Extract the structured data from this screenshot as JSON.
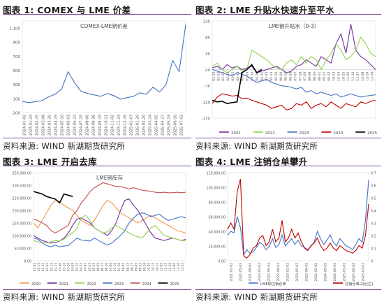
{
  "panels": [
    {
      "title": "图表 1: COMEX 与 LME 价差",
      "source": "资料来源: WIND 新湖期货研究所"
    },
    {
      "title": "图表 2: LME 升贴水快速升至平水",
      "source": "资料来源: WIND 新湖期货研究所"
    },
    {
      "title": "图表 3: LME 开启去库",
      "source": "资料来源: WIND 新湖期货研究所"
    },
    {
      "title": "图表 4: LME 注销仓单攀升",
      "source": "资料来源: WIND 新湖期货研究所"
    }
  ],
  "chart_data": [
    {
      "type": "line",
      "title": "COMEX-LME铜价差",
      "ylim": [
        -100,
        1200
      ],
      "yticks": [
        "1,100",
        "900",
        "700",
        "500",
        "300",
        "100",
        "-100"
      ],
      "x": [
        "2024-01-02",
        "2024-01-24",
        "2024-02-15",
        "2024-03-08",
        "2024-03-29",
        "2024-04-19",
        "2024-05-10",
        "2024-06-01",
        "2024-06-23",
        "2024-07-15",
        "2024-08-06",
        "2024-08-28",
        "2024-09-19",
        "2024-10-11",
        "2024-11-02",
        "2024-11-24",
        "2024-12-16",
        "2025-01-07",
        "2025-01-29",
        "2025-02-20",
        "2025-03-14",
        "2025-04-05",
        "2025-04-27",
        "2025-05-19",
        "2025-06-10",
        "2025-07-02"
      ],
      "xticks": [
        "2024-01-02",
        "2024-01-24",
        "2024-02-15",
        "2024-03-08",
        "2024-03-29",
        "2024-04-19",
        "2024-05-10",
        "2024-06-01",
        "2024-06-23",
        "2024-07-15",
        "2024-08-06",
        "2024-08-28",
        "2024-09-19",
        "2024-10-11",
        "2024-11-02",
        "2024-11-24",
        "2024-12-16",
        "2025-01-07",
        "2025-01-29",
        "2025-02-20",
        "2025-03-14",
        "2025-04-05",
        "2025-04-27",
        "2025-05-19",
        "2025-06-10",
        "2025-07-02"
      ],
      "series": [
        {
          "color": "#4472c4",
          "values": [
            60,
            40,
            55,
            70,
            120,
            160,
            230,
            480,
            320,
            200,
            170,
            150,
            130,
            170,
            140,
            90,
            110,
            130,
            180,
            160,
            260,
            190,
            300,
            640,
            480,
            1150
          ]
        }
      ]
    },
    {
      "type": "line",
      "title": "LME铜升贴水（0-3）",
      "ylim": [
        -170,
        130
      ],
      "yticks": [
        "130",
        "80",
        "30",
        "-20",
        "-70",
        "-120",
        "-170"
      ],
      "xticks": [
        "01-02",
        "01-13",
        "01-24",
        "02-04",
        "02-15",
        "02-26",
        "03-08",
        "03-19",
        "03-30",
        "04-10",
        "04-21",
        "05-02",
        "05-13",
        "05-24",
        "06-04",
        "06-15",
        "06-26",
        "07-07",
        "07-18",
        "07-29",
        "08-09",
        "08-20",
        "08-31",
        "09-11",
        "09-22",
        "10-03",
        "10-14",
        "10-25",
        "11-05",
        "11-16",
        "11-27",
        "12-08",
        "12-19",
        "12-30"
      ],
      "series": [
        {
          "name": "2021",
          "color": "#7030a0",
          "values": [
            -15,
            -10,
            -20,
            -5,
            -15,
            -10,
            -20,
            -15,
            -10,
            -30,
            -25,
            -20,
            -15,
            -10,
            -20,
            -30,
            -25,
            -10,
            -5,
            10,
            0,
            -10,
            20,
            10,
            0,
            60,
            90,
            30,
            120,
            40,
            20,
            10,
            -5,
            -20
          ]
        },
        {
          "name": "2022",
          "color": "#92d050",
          "values": [
            -10,
            0,
            -20,
            -30,
            -20,
            -10,
            -25,
            -20,
            40,
            30,
            20,
            10,
            -5,
            -15,
            -20,
            0,
            10,
            -5,
            20,
            0,
            20,
            10,
            -20,
            10,
            30,
            60,
            40,
            10,
            20,
            40,
            80,
            60,
            30,
            20
          ]
        },
        {
          "name": "2023",
          "color": "#4472c4",
          "values": [
            -20,
            -25,
            -30,
            -35,
            -40,
            -30,
            -35,
            -40,
            -50,
            -60,
            -55,
            -50,
            -60,
            -65,
            -70,
            -72,
            -75,
            -80,
            -75,
            -90,
            -85,
            -95,
            -90,
            -95,
            -100,
            -95,
            -105,
            -100,
            -95,
            -100,
            -105,
            -102,
            -100,
            -98
          ]
        },
        {
          "name": "2024",
          "color": "#c00000",
          "values": [
            -125,
            -105,
            -95,
            -98,
            -102,
            -100,
            -110,
            -108,
            -115,
            -120,
            -125,
            -130,
            -140,
            -135,
            -130,
            -145,
            -140,
            -125,
            -130,
            -120,
            -140,
            -130,
            -125,
            -135,
            -120,
            -130,
            -140,
            -125,
            -130,
            -135,
            -120,
            -125,
            -118,
            -115
          ]
        },
        {
          "name": "2025",
          "color": "#000000",
          "values": [
            -115,
            -120,
            -118,
            -125,
            -122,
            -120,
            -30,
            -20,
            -5,
            -30,
            -20
          ]
        }
      ]
    },
    {
      "type": "line",
      "title": "LME铜库存",
      "ylim": [
        0,
        350000
      ],
      "yticks": [
        "350,000.00",
        "300,000.00",
        "250,000.00",
        "200,000.00",
        "150,000.00",
        "100,000.00",
        "50,000.00",
        "0.00"
      ],
      "xticks": [
        "01-02",
        "01-13",
        "01-23",
        "02-02",
        "02-13",
        "02-23",
        "03-06",
        "03-16",
        "03-26",
        "04-05",
        "04-15",
        "04-25",
        "05-05",
        "05-15",
        "05-25",
        "06-05",
        "06-15",
        "06-26",
        "07-06",
        "07-16",
        "07-26",
        "08-05",
        "08-15",
        "08-25",
        "09-05",
        "09-15",
        "09-26",
        "10-05",
        "10-15",
        "10-25",
        "11-05",
        "11-15",
        "11-26",
        "12-06",
        "12-16",
        "12-25"
      ],
      "series": [
        {
          "name": "2020",
          "color": "#f79646",
          "values": [
            150000,
            130000,
            160000,
            190000,
            220000,
            240000,
            235000,
            220000,
            210000,
            200000,
            180000,
            160000,
            150000,
            140000,
            160000,
            190000,
            220000,
            240000,
            230000,
            210000,
            190000,
            180000,
            170000,
            160000,
            150000,
            160000,
            170000,
            180000,
            170000,
            160000,
            150000,
            140000,
            130000,
            120000,
            115000,
            110000
          ]
        },
        {
          "name": "2021",
          "color": "#7030a0",
          "values": [
            100000,
            90000,
            80000,
            75000,
            70000,
            72000,
            78000,
            90000,
            110000,
            140000,
            165000,
            170000,
            160000,
            150000,
            130000,
            120000,
            110000,
            100000,
            120000,
            150000,
            200000,
            240000,
            245000,
            220000,
            200000,
            170000,
            140000,
            110000,
            90000,
            85000,
            80000,
            85000,
            90000,
            85000,
            80000,
            85000
          ]
        },
        {
          "name": "2022",
          "color": "#92d050",
          "values": [
            80000,
            75000,
            72000,
            70000,
            75000,
            80000,
            78000,
            85000,
            100000,
            110000,
            130000,
            170000,
            180000,
            160000,
            130000,
            120000,
            110000,
            115000,
            130000,
            140000,
            130000,
            120000,
            110000,
            100000,
            95000,
            90000,
            110000,
            130000,
            140000,
            120000,
            100000,
            95000,
            90000,
            85000,
            80000,
            80000
          ]
        },
        {
          "name": "2023",
          "color": "#4472c4",
          "values": [
            90000,
            85000,
            70000,
            60000,
            55000,
            62000,
            55000,
            58000,
            60000,
            75000,
            90000,
            82000,
            80000,
            78000,
            90000,
            80000,
            70000,
            62000,
            70000,
            85000,
            100000,
            120000,
            150000,
            170000,
            185000,
            190000,
            185000,
            175000,
            180000,
            185000,
            170000,
            160000,
            165000,
            170000,
            175000,
            170000
          ]
        },
        {
          "name": "2024",
          "color": "#c0504d",
          "values": [
            165000,
            160000,
            150000,
            140000,
            120000,
            110000,
            120000,
            130000,
            140000,
            180000,
            200000,
            230000,
            250000,
            275000,
            290000,
            300000,
            310000,
            305000,
            300000,
            295000,
            295000,
            290000,
            285000,
            290000,
            285000,
            280000,
            278000,
            275000,
            272000,
            270000,
            272000,
            270000,
            270000,
            272000,
            270000,
            272000
          ]
        },
        {
          "name": "2025",
          "color": "#000000",
          "values": [
            275000,
            270000,
            265000,
            255000,
            250000,
            245000,
            230000,
            265000,
            260000,
            255000
          ]
        }
      ]
    },
    {
      "type": "line",
      "ylim": [
        0,
        120000
      ],
      "yticks": [
        "120,000.00",
        "100,000.00",
        "80,000.00",
        "60,000.00",
        "40,000.00",
        "20,000.00",
        "0.00"
      ],
      "y2ticks": [
        "0.7",
        "0.6",
        "0.5",
        "0.4",
        "0.3",
        "0.2",
        "0.1",
        "0"
      ],
      "xticks": [
        "2021-01-02",
        "2021-05-02",
        "2021-09-02",
        "2022-01-02",
        "2022-05-02",
        "2022-09-02",
        "2023-01-02",
        "2023-05-02",
        "2023-09-02",
        "2024-01-02",
        "2024-05-02",
        "2024-09-02",
        "2025-01-02",
        "2025-05-02",
        "2025-03-02"
      ],
      "series": [
        {
          "name": "LME铜注销仓单",
          "color": "#4472c4",
          "values": [
            35000,
            40000,
            38000,
            60000,
            45000,
            8000,
            15000,
            10000,
            12000,
            18000,
            25000,
            22000,
            15000,
            20000,
            30000,
            18000,
            22000,
            35000,
            20000,
            25000,
            30000,
            22000,
            28000,
            20000,
            18000,
            15000,
            20000,
            25000,
            40000,
            30000,
            22000,
            28000,
            35000,
            25000,
            20000,
            30000,
            25000,
            20000,
            18000,
            15000,
            22000,
            30000,
            25000,
            55000,
            110000
          ]
        },
        {
          "name": "注销仓单占比(右)",
          "color": "#c00000",
          "values": [
            0.25,
            0.3,
            0.25,
            0.55,
            0.65,
            0.04,
            0.02,
            0.05,
            0.1,
            0.12,
            0.18,
            0.2,
            0.12,
            0.15,
            0.25,
            0.15,
            0.18,
            0.32,
            0.15,
            0.18,
            0.25,
            0.18,
            0.22,
            0.15,
            0.1,
            0.08,
            0.12,
            0.14,
            0.18,
            0.12,
            0.08,
            0.1,
            0.14,
            0.1,
            0.08,
            0.12,
            0.1,
            0.08,
            0.07,
            0.06,
            0.08,
            0.12,
            0.1,
            0.2,
            0.45
          ]
        }
      ]
    }
  ]
}
